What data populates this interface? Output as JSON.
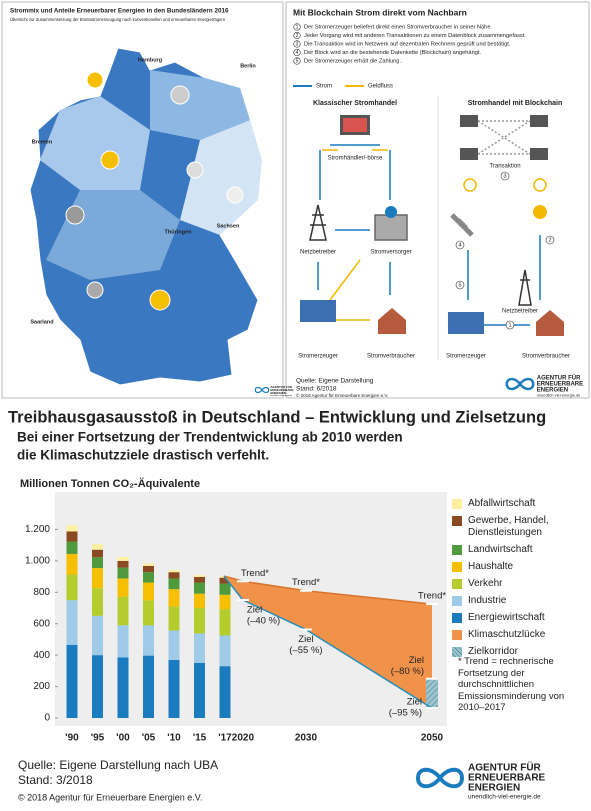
{
  "map_panel": {
    "title": "Strommix und Anteile Erneuerbarer Energien in den Bundesländern 2016",
    "subtitle": "Übersicht zur Zusammensetzung der Bruttostromerzeugung nach konventionellen und erneuerbaren Energieträgern",
    "states": [
      "Hamburg",
      "Bremen",
      "Berlin",
      "Thüringen",
      "Sachsen",
      "Saarland"
    ]
  },
  "logo": {
    "line1": "AGENTUR FÜR",
    "line2": "ERNEUERBARE",
    "line3": "ENERGIEN",
    "url": "unendlich-viel-energie.de"
  },
  "blockchain_panel": {
    "title": "Mit Blockchain Strom direkt vom Nachbarn",
    "steps": [
      {
        "number": 1,
        "text": "Der Stromerzeuger beliefert direkt einen Stromverbraucher in seiner Nähe."
      },
      {
        "number": 2,
        "text": "Jeder Vorgang wird mit anderen Transaktionen zu einem Datenblock zusammengefasst."
      },
      {
        "number": 3,
        "text": "Die Transaktion wird im Netzwerk auf dezentralen Rechnern geprüft und bestätigt."
      },
      {
        "number": 4,
        "text": "Der Block wird an die bestehende Datenkette (Blockchain) angehängt."
      },
      {
        "number": 5,
        "text": "Der Stromerzeuger erhält die Zahlung."
      }
    ],
    "legend": [
      "Strom",
      "Geldfluss"
    ],
    "left_heading": "Klassischer Stromhandel",
    "right_heading": "Stromhandel mit Blockchain",
    "left_labels": [
      "Stromhändler/-börse",
      "Netzbetreiber",
      "Stromversorger",
      "Stromerzeuger",
      "Stromverbraucher"
    ],
    "right_labels": [
      "Transaktion",
      "Netzbetreiber",
      "Stromerzeuger",
      "Stromverbraucher"
    ],
    "right_markers": [
      3,
      4,
      2,
      5,
      1
    ],
    "source": "Quelle: Eigene Darstellung",
    "stand": "Stand: 6/2018",
    "copyright": "© 2018 Agentur für Erneuerbare Energien e.V."
  },
  "chart_data": {
    "type": "bar",
    "stacked": true,
    "title": "Treibhausgasausstoß in Deutschland – Entwicklung und Zielsetzung",
    "subtitle_lines": [
      "Bei einer Fortsetzung der Trendentwicklung ab 2010 werden",
      "die Klimaschutzziele drastisch verfehlt."
    ],
    "y_label": "Millionen Tonnen CO₂-Äquivalente",
    "categories": [
      "'90",
      "'95",
      "'00",
      "'05",
      "'10",
      "'15",
      "'17"
    ],
    "series": [
      {
        "name": "Energiewirtschaft",
        "color": "#1a7bbf",
        "values": [
          466,
          400,
          385,
          397,
          369,
          350,
          330
        ]
      },
      {
        "name": "Industrie",
        "color": "#9fcbe8",
        "values": [
          284,
          250,
          205,
          192,
          188,
          188,
          195
        ]
      },
      {
        "name": "Verkehr",
        "color": "#b5cc2e",
        "values": [
          163,
          176,
          181,
          160,
          153,
          162,
          168
        ]
      },
      {
        "name": "Haushalte",
        "color": "#f6c000",
        "values": [
          131,
          128,
          117,
          113,
          110,
          91,
          91
        ]
      },
      {
        "name": "Landwirtschaft",
        "color": "#4e9a3c",
        "values": [
          79,
          69,
          69,
          66,
          68,
          71,
          72
        ]
      },
      {
        "name": "Gewerbe, Handel, Dienstleistungen",
        "color": "#8b4a23",
        "values": [
          64,
          48,
          43,
          40,
          40,
          36,
          37
        ]
      },
      {
        "name": "Abfallwirtschaft",
        "color": "#fdf0a0",
        "values": [
          38,
          35,
          25,
          15,
          14,
          11,
          10
        ]
      }
    ],
    "legend_extra": [
      {
        "name": "Klimaschutzlücke",
        "color": "#f0924a"
      },
      {
        "name": "Zielkorridor",
        "color": "#9cc5cf"
      }
    ],
    "ylim": [
      0,
      1400
    ],
    "yticks": [
      0,
      200,
      400,
      600,
      800,
      {
        "value": 1000,
        "label": "1.000"
      },
      {
        "value": 1200,
        "label": "1.200"
      }
    ],
    "grid": false,
    "legend_position": "right",
    "projection": {
      "xlim": [
        2017,
        2050
      ],
      "x": [
        2020,
        2030,
        2050
      ],
      "trend_label": "Trend*",
      "trend_values": [
        870,
        810,
        725
      ],
      "targets": {
        "x": [
          2020,
          2030,
          2050,
          2050
        ],
        "values": [
          751,
          563,
          250,
          63
        ],
        "labels": [
          [
            "Ziel",
            "(–40 %)"
          ],
          [
            "Ziel",
            "(–55 %)"
          ],
          [
            "Ziel",
            "(–80 %)"
          ],
          [
            "Ziel",
            "(–95 %)"
          ]
        ]
      }
    },
    "footnote": "* Trend = rechnerische Fortsetzung der durchschnittlichen Emissionsminderung von 2010–2017",
    "source": "Quelle: Eigene Darstellung nach UBA",
    "stand": "Stand: 3/2018",
    "copyright": "© 2018 Agentur für Erneuerbare Energien e.V."
  }
}
